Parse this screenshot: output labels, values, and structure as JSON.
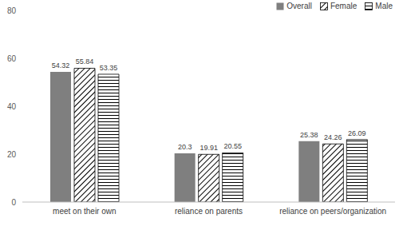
{
  "chart_data": {
    "type": "bar",
    "categories": [
      "meet on their own",
      "reliance on parents",
      "reliance on peers/organization"
    ],
    "series": [
      {
        "name": "Overall",
        "color": "#7f7f7f",
        "values": [
          54.32,
          20.3,
          25.38
        ]
      },
      {
        "name": "Female",
        "color": "#000000",
        "values": [
          55.84,
          19.91,
          24.26
        ]
      },
      {
        "name": "Male",
        "color": "#000000",
        "values": [
          53.35,
          20.55,
          26.09
        ]
      }
    ],
    "ylim": [
      0,
      80
    ],
    "yticks": [
      0,
      20,
      40,
      60,
      80
    ],
    "grid": false,
    "legend": "upper right",
    "data_labels": true
  }
}
